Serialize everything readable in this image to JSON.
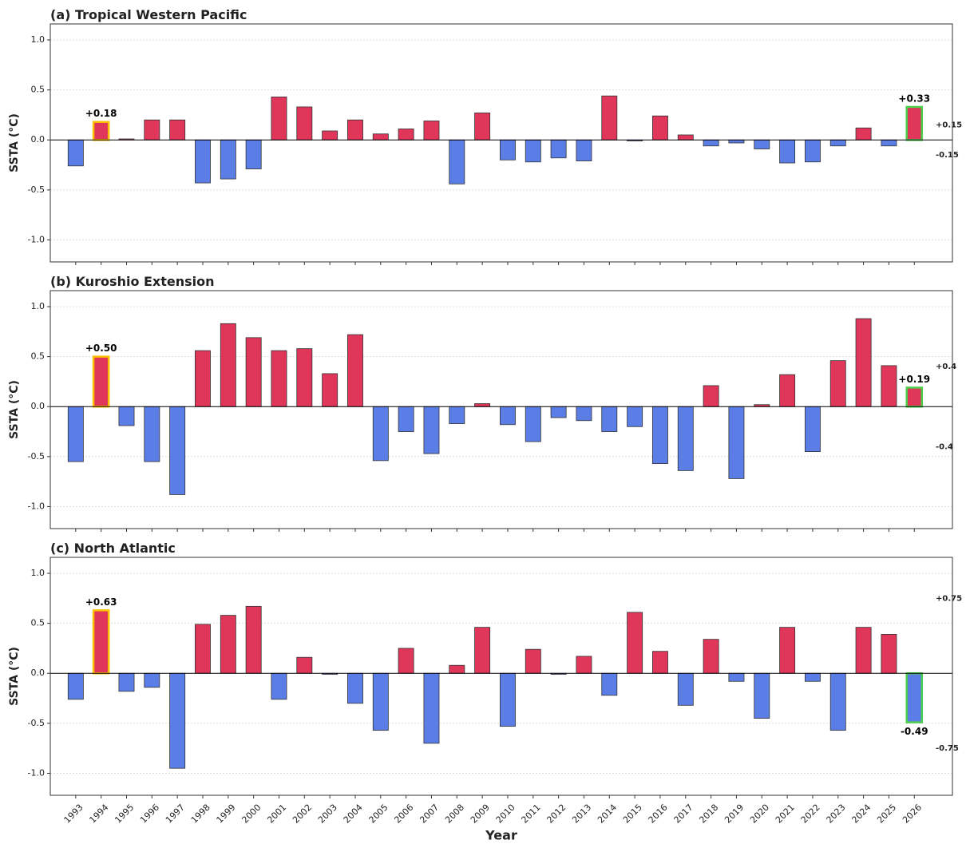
{
  "chart_data": [
    {
      "type": "bar",
      "title": "(a) Tropical Western Pacific",
      "ylabel": "SSTA (°C)",
      "x": [
        1993,
        1994,
        1995,
        1996,
        1997,
        1998,
        1999,
        2000,
        2001,
        2002,
        2003,
        2004,
        2005,
        2006,
        2007,
        2008,
        2009,
        2010,
        2011,
        2012,
        2013,
        2014,
        2015,
        2016,
        2017,
        2018,
        2019,
        2020,
        2021,
        2022,
        2023,
        2024,
        2025,
        2026
      ],
      "values": [
        -0.26,
        0.18,
        0.01,
        0.2,
        0.2,
        -0.43,
        -0.39,
        -0.29,
        0.43,
        0.33,
        0.09,
        0.2,
        0.06,
        0.11,
        0.19,
        -0.44,
        0.27,
        -0.2,
        -0.22,
        -0.18,
        -0.21,
        0.44,
        -0.01,
        0.24,
        0.05,
        -0.06,
        -0.03,
        -0.09,
        -0.23,
        -0.22,
        -0.06,
        0.12,
        -0.06,
        0.33
      ],
      "value_labels": [
        null,
        "+0.18",
        null,
        null,
        null,
        null,
        null,
        null,
        null,
        null,
        null,
        null,
        null,
        null,
        null,
        null,
        null,
        null,
        null,
        null,
        null,
        null,
        null,
        null,
        null,
        null,
        null,
        null,
        null,
        null,
        null,
        null,
        null,
        "+0.33"
      ],
      "edge_colors": [
        "#333333",
        "#ffc000",
        "#333333",
        "#333333",
        "#333333",
        "#333333",
        "#333333",
        "#333333",
        "#333333",
        "#333333",
        "#333333",
        "#333333",
        "#333333",
        "#333333",
        "#333333",
        "#333333",
        "#333333",
        "#333333",
        "#333333",
        "#333333",
        "#333333",
        "#333333",
        "#333333",
        "#333333",
        "#333333",
        "#333333",
        "#333333",
        "#333333",
        "#333333",
        "#333333",
        "#333333",
        "#333333",
        "#333333",
        "#4cd04c"
      ],
      "positive_color": "#e0365a",
      "negative_color": "#5b7de6",
      "thresholds": [
        {
          "value": 0.15,
          "label": "+0.15",
          "color": "#ff0000"
        },
        {
          "value": -0.15,
          "label": "-0.15",
          "color": "#0000ff"
        }
      ],
      "xlim": [
        1992,
        2027.5
      ],
      "ylim": [
        -1.22,
        1.16
      ],
      "yticks": [
        {
          "value": -1,
          "label": "-1.0"
        },
        -0.5,
        {
          "value": 0,
          "label": "0.0"
        },
        0.5,
        {
          "value": 1,
          "label": "1.0"
        }
      ],
      "grid": true
    },
    {
      "type": "bar",
      "title": "(b) Kuroshio Extension",
      "ylabel": "SSTA (°C)",
      "x": [
        1993,
        1994,
        1995,
        1996,
        1997,
        1998,
        1999,
        2000,
        2001,
        2002,
        2003,
        2004,
        2005,
        2006,
        2007,
        2008,
        2009,
        2010,
        2011,
        2012,
        2013,
        2014,
        2015,
        2016,
        2017,
        2018,
        2019,
        2020,
        2021,
        2022,
        2023,
        2024,
        2025,
        2026
      ],
      "values": [
        -0.55,
        0.5,
        -0.19,
        -0.55,
        -0.88,
        0.56,
        0.83,
        0.69,
        0.56,
        0.58,
        0.33,
        0.72,
        -0.54,
        -0.25,
        -0.47,
        -0.17,
        0.03,
        -0.18,
        -0.35,
        -0.11,
        -0.14,
        -0.25,
        -0.2,
        -0.57,
        -0.64,
        0.21,
        -0.72,
        0.02,
        0.32,
        -0.45,
        0.46,
        0.88,
        0.41,
        0.19
      ],
      "value_labels": [
        null,
        "+0.50",
        null,
        null,
        null,
        null,
        null,
        null,
        null,
        null,
        null,
        null,
        null,
        null,
        null,
        null,
        null,
        null,
        null,
        null,
        null,
        null,
        null,
        null,
        null,
        null,
        null,
        null,
        null,
        null,
        null,
        null,
        null,
        "+0.19"
      ],
      "edge_colors": [
        "#333333",
        "#ffc000",
        "#333333",
        "#333333",
        "#333333",
        "#333333",
        "#333333",
        "#333333",
        "#333333",
        "#333333",
        "#333333",
        "#333333",
        "#333333",
        "#333333",
        "#333333",
        "#333333",
        "#333333",
        "#333333",
        "#333333",
        "#333333",
        "#333333",
        "#333333",
        "#333333",
        "#333333",
        "#333333",
        "#333333",
        "#333333",
        "#333333",
        "#333333",
        "#333333",
        "#333333",
        "#333333",
        "#333333",
        "#4cd04c"
      ],
      "positive_color": "#e0365a",
      "negative_color": "#5b7de6",
      "thresholds": [
        {
          "value": 0.4,
          "label": "+0.4",
          "color": "#ff0000"
        },
        {
          "value": -0.4,
          "label": "-0.4",
          "color": "#0000ff"
        }
      ],
      "xlim": [
        1992,
        2027.5
      ],
      "ylim": [
        -1.22,
        1.16
      ],
      "yticks": [
        {
          "value": -1,
          "label": "-1.0"
        },
        -0.5,
        {
          "value": 0,
          "label": "0.0"
        },
        0.5,
        {
          "value": 1,
          "label": "1.0"
        }
      ],
      "grid": true
    },
    {
      "type": "bar",
      "title": "(c) North Atlantic",
      "ylabel": "SSTA (°C)",
      "xlabel": "Year",
      "x": [
        1993,
        1994,
        1995,
        1996,
        1997,
        1998,
        1999,
        2000,
        2001,
        2002,
        2003,
        2004,
        2005,
        2006,
        2007,
        2008,
        2009,
        2010,
        2011,
        2012,
        2013,
        2014,
        2015,
        2016,
        2017,
        2018,
        2019,
        2020,
        2021,
        2022,
        2023,
        2024,
        2025,
        2026
      ],
      "values": [
        -0.26,
        0.63,
        -0.18,
        -0.14,
        -0.95,
        0.49,
        0.58,
        0.67,
        -0.26,
        0.16,
        -0.01,
        -0.3,
        -0.57,
        0.25,
        -0.7,
        0.08,
        0.46,
        -0.53,
        0.24,
        -0.01,
        0.17,
        -0.22,
        0.61,
        0.22,
        -0.32,
        0.34,
        -0.08,
        -0.45,
        0.46,
        -0.08,
        -0.57,
        0.46,
        0.39,
        -0.49
      ],
      "value_labels": [
        null,
        "+0.63",
        null,
        null,
        null,
        null,
        null,
        null,
        null,
        null,
        null,
        null,
        null,
        null,
        null,
        null,
        null,
        null,
        null,
        null,
        null,
        null,
        null,
        null,
        null,
        null,
        null,
        null,
        null,
        null,
        null,
        null,
        null,
        "-0.49"
      ],
      "edge_colors": [
        "#333333",
        "#ffc000",
        "#333333",
        "#333333",
        "#333333",
        "#333333",
        "#333333",
        "#333333",
        "#333333",
        "#333333",
        "#333333",
        "#333333",
        "#333333",
        "#333333",
        "#333333",
        "#333333",
        "#333333",
        "#333333",
        "#333333",
        "#333333",
        "#333333",
        "#333333",
        "#333333",
        "#333333",
        "#333333",
        "#333333",
        "#333333",
        "#333333",
        "#333333",
        "#333333",
        "#333333",
        "#333333",
        "#333333",
        "#4cd04c"
      ],
      "positive_color": "#e0365a",
      "negative_color": "#5b7de6",
      "thresholds": [
        {
          "value": 0.75,
          "label": "+0.75",
          "color": "#ff0000"
        },
        {
          "value": -0.75,
          "label": "-0.75",
          "color": "#0000ff"
        }
      ],
      "xlim": [
        1992,
        2027.5
      ],
      "ylim": [
        -1.22,
        1.16
      ],
      "yticks": [
        {
          "value": -1,
          "label": "-1.0"
        },
        -0.5,
        {
          "value": 0,
          "label": "0.0"
        },
        0.5,
        {
          "value": 1,
          "label": "1.0"
        }
      ],
      "grid": true
    }
  ]
}
